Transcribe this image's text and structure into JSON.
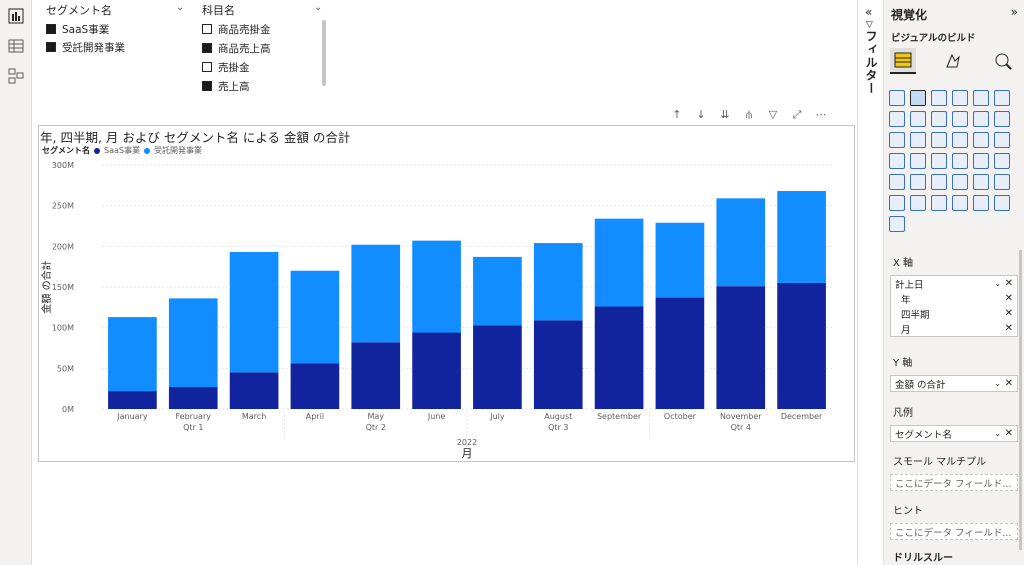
{
  "rail": {
    "icons": [
      "report-view-icon",
      "table-view-icon",
      "model-view-icon"
    ]
  },
  "slicers": [
    {
      "header": "セグメント名",
      "items": [
        {
          "label": "SaaS事業",
          "checked": true
        },
        {
          "label": "受託開発事業",
          "checked": true
        }
      ]
    },
    {
      "header": "科目名",
      "items": [
        {
          "label": "商品売掛金",
          "checked": false
        },
        {
          "label": "商品売上高",
          "checked": true
        },
        {
          "label": "売掛金",
          "checked": false
        },
        {
          "label": "売上高",
          "checked": true
        }
      ]
    }
  ],
  "visual": {
    "title": "年, 四半期, 月 および セグメント名 による 金額 の合計",
    "legend_title": "セグメント名",
    "toolbar_icons": [
      "arrow-up-icon",
      "arrow-down-icon",
      "double-down-icon",
      "expand-hierarchy-icon",
      "filter-icon",
      "focus-mode-icon",
      "more-options-icon"
    ]
  },
  "chart_data": {
    "type": "bar",
    "stacked": true,
    "xlabel": "月",
    "ylabel": "金額 の合計",
    "ylim": [
      0,
      300
    ],
    "yticks": [
      "0M",
      "50M",
      "100M",
      "150M",
      "200M",
      "250M",
      "300M"
    ],
    "categories": [
      "January",
      "February",
      "March",
      "April",
      "May",
      "June",
      "July",
      "August",
      "September",
      "October",
      "November",
      "December"
    ],
    "quarters": [
      "Qtr 1",
      "Qtr 2",
      "Qtr 3",
      "Qtr 4"
    ],
    "year": "2022",
    "series": [
      {
        "name": "SaaS事業",
        "color": "#12239e",
        "values": [
          22,
          27,
          45,
          56,
          82,
          94,
          103,
          109,
          126,
          137,
          151,
          155
        ]
      },
      {
        "name": "受託開発事業",
        "color": "#118dff",
        "values": [
          91,
          109,
          148,
          114,
          120,
          113,
          84,
          95,
          108,
          92,
          108,
          113
        ]
      }
    ]
  },
  "filters": {
    "label": "フィルター"
  },
  "pane": {
    "title": "視覚化",
    "subtitle": "ビジュアルのビルド",
    "tabs": [
      "build-visual-icon",
      "format-visual-icon",
      "analytics-icon"
    ],
    "xaxis": {
      "label": "X 軸",
      "field": "計上日",
      "hierarchy": [
        "年",
        "四半期",
        "月"
      ]
    },
    "yaxis": {
      "label": "Y 軸",
      "field": "金額 の合計"
    },
    "legend": {
      "label": "凡例",
      "field": "セグメント名"
    },
    "small_multiples": {
      "label": "スモール マルチプル",
      "placeholder": "ここにデータ フィールド..."
    },
    "tooltips": {
      "label": "ヒント",
      "placeholder": "ここにデータ フィールド..."
    },
    "drillthrough": {
      "label": "ドリルスルー"
    }
  }
}
